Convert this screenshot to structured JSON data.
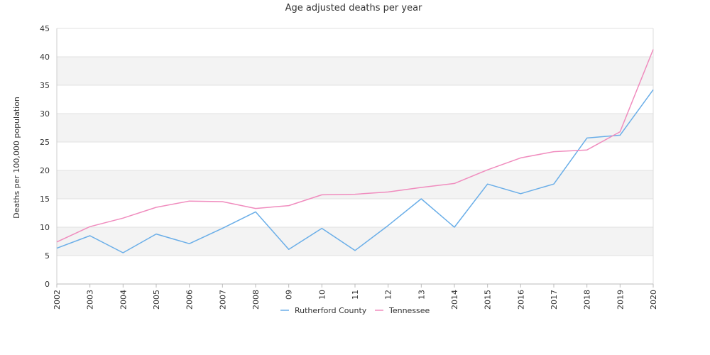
{
  "chart_data": {
    "type": "line",
    "title": "Age adjusted deaths per year",
    "xlabel": "",
    "ylabel": "Deaths per 100,000 population",
    "categories": [
      "2002",
      "2003",
      "2004",
      "2005",
      "2006",
      "2007",
      "2008",
      "09",
      "10",
      "11",
      "12",
      "13",
      "2014",
      "2015",
      "2016",
      "2017",
      "2018",
      "2019",
      "2020"
    ],
    "ylim": [
      0,
      45
    ],
    "yticks": [
      0,
      5,
      10,
      15,
      20,
      25,
      30,
      35,
      40,
      45
    ],
    "legend_position": "bottom",
    "banded_background": true,
    "series": [
      {
        "name": "Rutherford County",
        "color": "#6aaee8",
        "values": [
          6.3,
          8.5,
          5.5,
          8.8,
          7.1,
          9.8,
          12.7,
          6.1,
          9.8,
          5.9,
          10.3,
          15.0,
          10.0,
          17.6,
          15.9,
          17.6,
          25.7,
          26.2,
          34.2
        ]
      },
      {
        "name": "Tennessee",
        "color": "#f08cbe",
        "values": [
          7.4,
          10.1,
          11.6,
          13.5,
          14.6,
          14.5,
          13.3,
          13.8,
          15.7,
          15.8,
          16.2,
          17.0,
          17.7,
          20.1,
          22.2,
          23.3,
          23.6,
          26.8,
          41.3
        ]
      }
    ]
  }
}
